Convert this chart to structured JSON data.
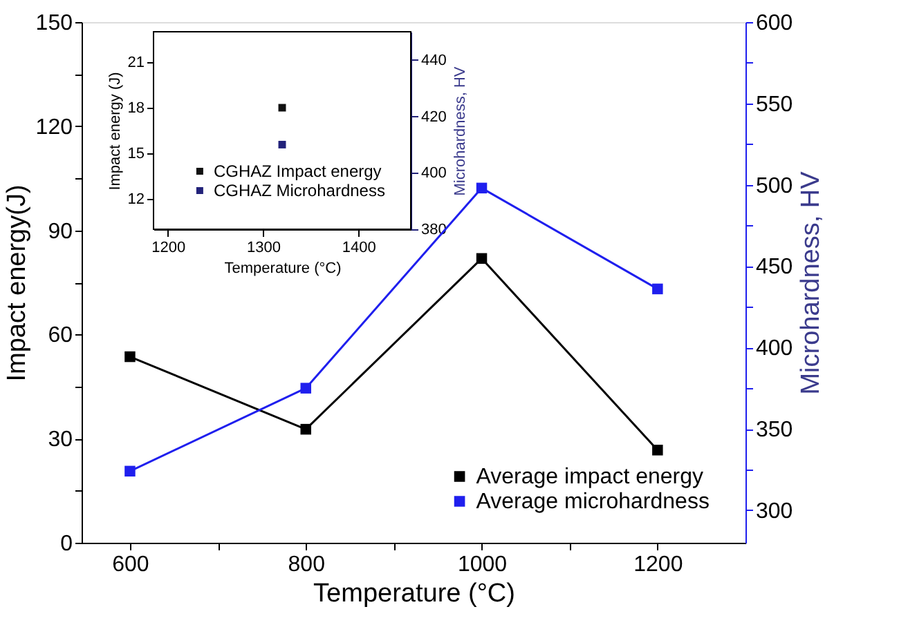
{
  "chart_data": [
    {
      "type": "line",
      "xlabel": "Temperature (°C)",
      "ylabel": "Impact energy(J)",
      "y2label": "Microhardness, HV",
      "x": [
        600,
        800,
        1000,
        1200
      ],
      "xlim": [
        545,
        1300
      ],
      "xticks": [
        600,
        {
          "value": 700,
          "label": null
        },
        800,
        {
          "value": 900,
          "label": null
        },
        1000,
        {
          "value": 1100,
          "label": null
        },
        1200
      ],
      "ylim": [
        0,
        150
      ],
      "yticks": [
        0,
        {
          "value": 15,
          "label": null
        },
        30,
        {
          "value": 45,
          "label": null
        },
        60,
        {
          "value": 75,
          "label": null
        },
        90,
        {
          "value": 105,
          "label": null
        },
        120,
        {
          "value": 135,
          "label": null
        },
        150
      ],
      "y2lim": [
        280,
        600
      ],
      "y2ticks": [
        300,
        {
          "value": 325,
          "label": null
        },
        350,
        {
          "value": 375,
          "label": null
        },
        400,
        {
          "value": 425,
          "label": null
        },
        450,
        {
          "value": 475,
          "label": null
        },
        500,
        {
          "value": 525,
          "label": null
        },
        550,
        {
          "value": 575,
          "label": null
        },
        600
      ],
      "series": [
        {
          "name": "Average impact energy",
          "color": "#000000",
          "values": [
            53.6,
            32.7,
            81.9,
            26.7
          ]
        },
        {
          "name": "Average microhardness",
          "color": "#1f1fee",
          "axis": "y2",
          "values": [
            324,
            375,
            498,
            436
          ]
        }
      ],
      "marker": "square",
      "grid": false,
      "legend": "bottom right"
    },
    {
      "type": "scatter",
      "xlabel": "Temperature (°C)",
      "ylabel": "Impact energy (J)",
      "y2label": "Microhardness, HV",
      "x": [
        1320
      ],
      "xlim": [
        1185,
        1455
      ],
      "xticks": [
        1200,
        1300,
        1400
      ],
      "ylim": [
        10,
        23
      ],
      "yticks": [
        12,
        15,
        18,
        21
      ],
      "y2lim": [
        380,
        450
      ],
      "y2ticks": [
        380,
        400,
        420,
        440
      ],
      "series": [
        {
          "name": "CGHAZ Impact energy",
          "color": "#111111",
          "values": [
            18.0
          ]
        },
        {
          "name": "CGHAZ Microhardness",
          "color": "#22227a",
          "axis": "y2",
          "values": [
            410
          ]
        }
      ],
      "marker": "square",
      "grid": false,
      "legend": "bottom right"
    }
  ]
}
